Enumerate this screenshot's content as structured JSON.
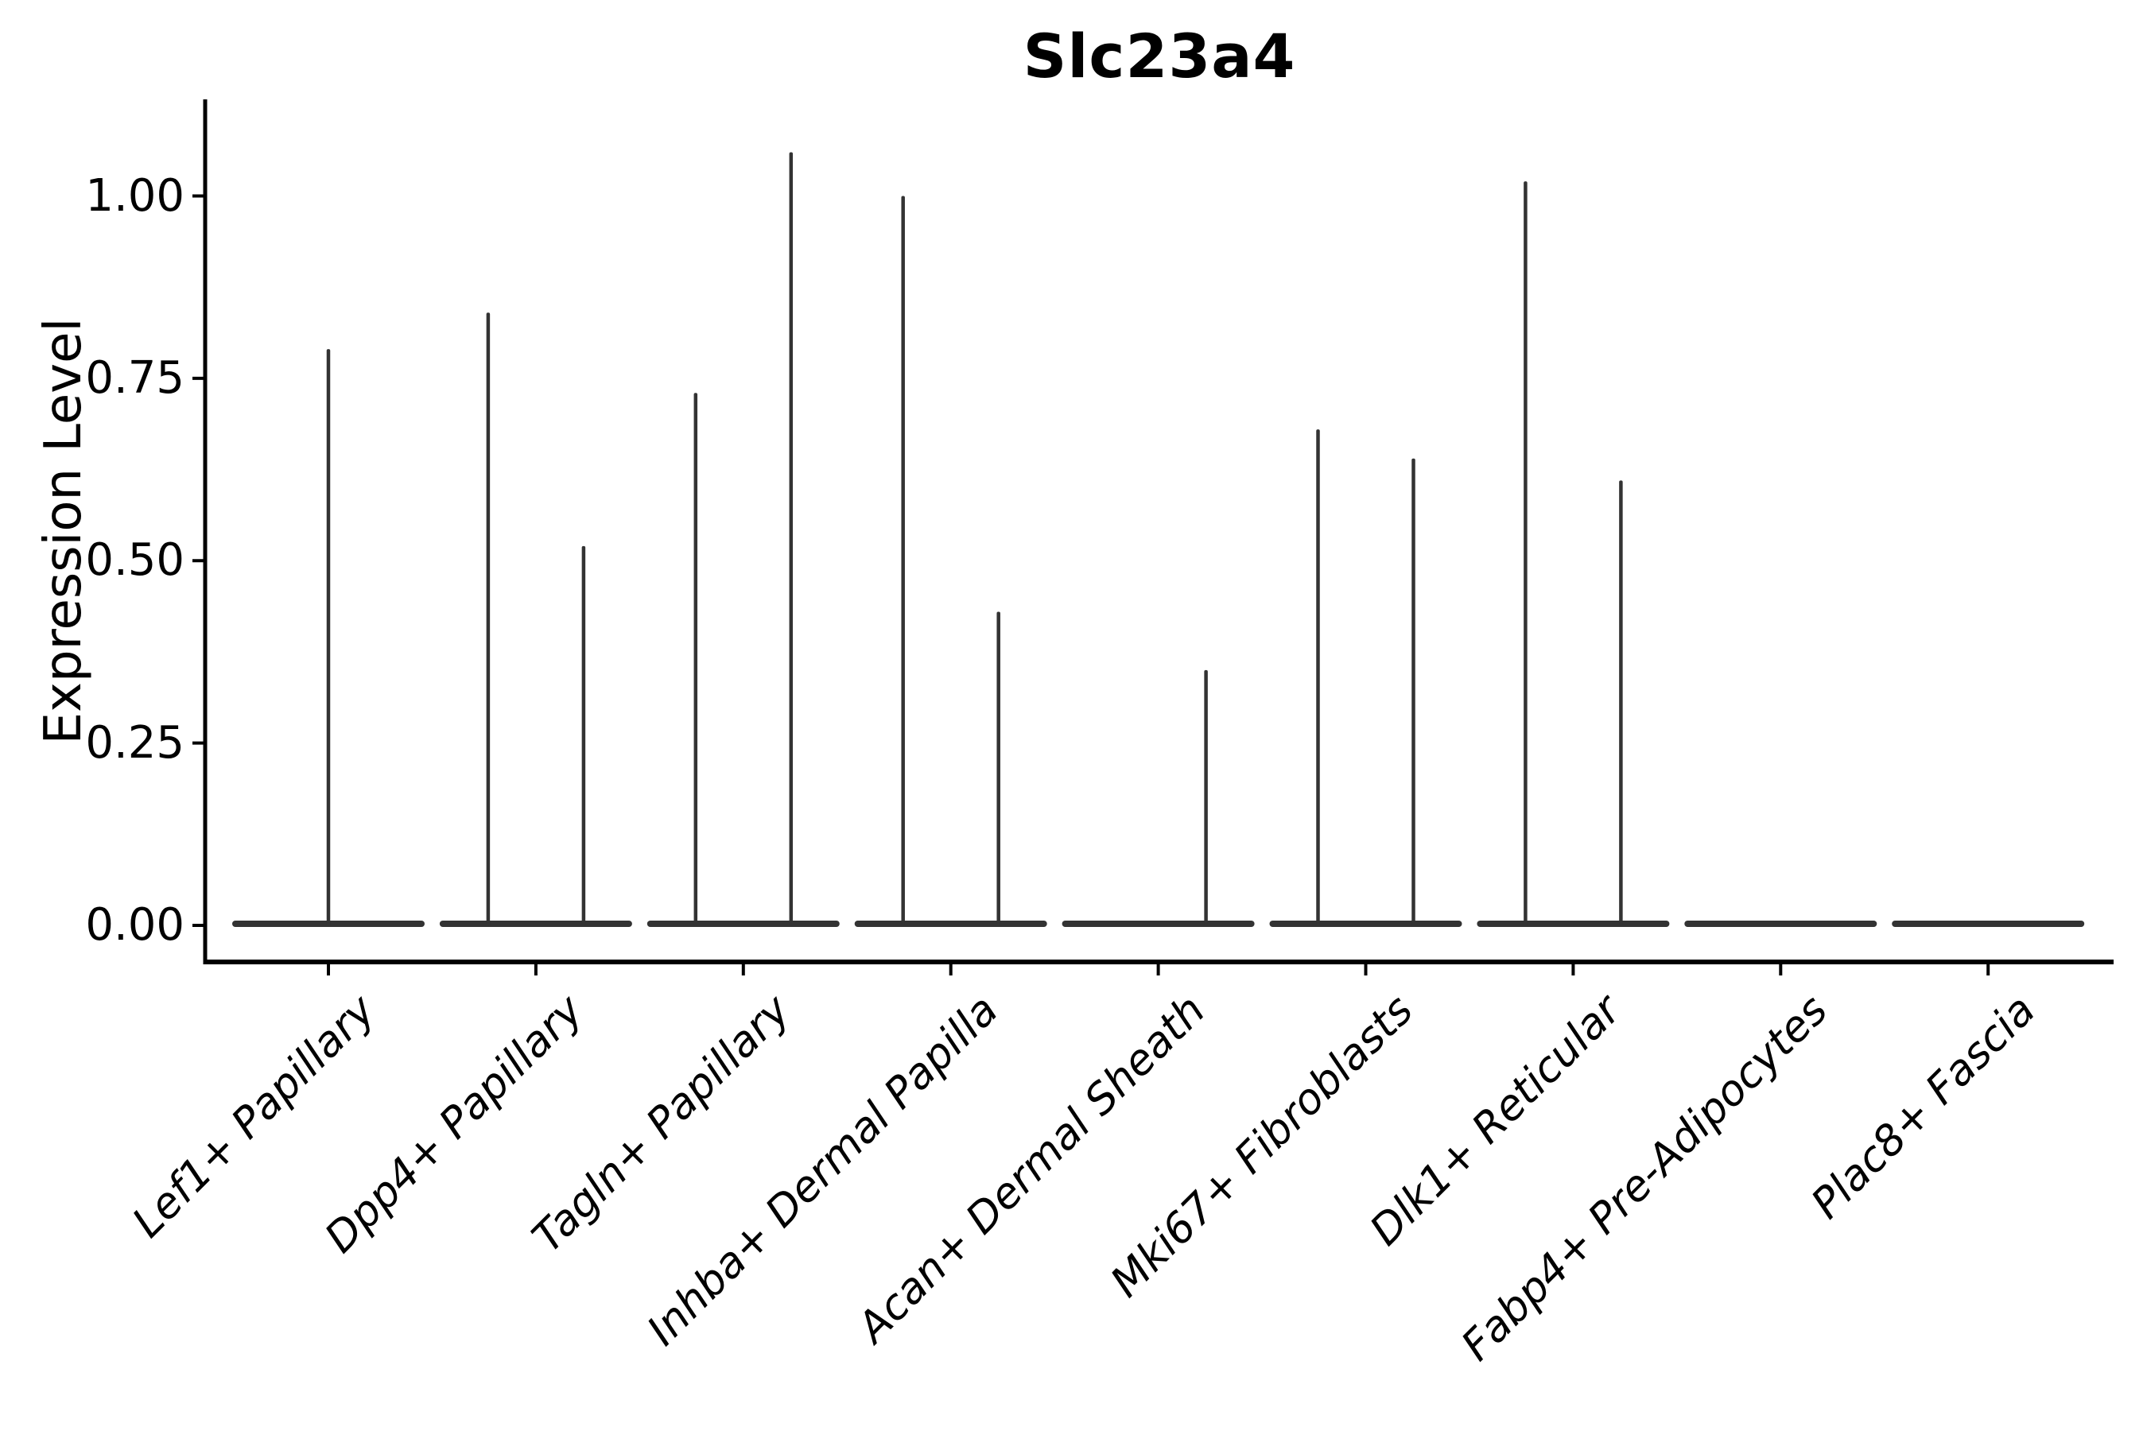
{
  "chart_data": {
    "type": "violin",
    "title": "Slc23a4",
    "xlabel": "",
    "ylabel": "Expression Level",
    "ylim": [
      -0.05,
      1.13
    ],
    "yticks": [
      {
        "value": 0.0,
        "label": "0.00"
      },
      {
        "value": 0.25,
        "label": "0.25"
      },
      {
        "value": 0.5,
        "label": "0.50"
      },
      {
        "value": 0.75,
        "label": "0.75"
      },
      {
        "value": 1.0,
        "label": "1.00"
      }
    ],
    "categories": [
      "Lef1+ Papillary",
      "Dpp4+ Papillary",
      "Tagln+ Papillary",
      "Inhba+ Dermal Papilla",
      "Acan+ Dermal Sheath",
      "Mki67+ Fibroblasts",
      "Dlk1+ Reticular",
      "Fabp4+ Pre-Adipocytes",
      "Plac8+ Fascia"
    ],
    "violins": [
      {
        "category": "Lef1+ Papillary",
        "spikes": [
          {
            "position": "center",
            "value": 0.79
          }
        ]
      },
      {
        "category": "Dpp4+ Papillary",
        "spikes": [
          {
            "position": "left",
            "value": 0.84
          },
          {
            "position": "right",
            "value": 0.52
          }
        ]
      },
      {
        "category": "Tagln+ Papillary",
        "spikes": [
          {
            "position": "left",
            "value": 0.73
          },
          {
            "position": "right",
            "value": 1.06
          }
        ]
      },
      {
        "category": "Inhba+ Dermal Papilla",
        "spikes": [
          {
            "position": "left",
            "value": 1.0
          },
          {
            "position": "right",
            "value": 0.43
          }
        ]
      },
      {
        "category": "Acan+ Dermal Sheath",
        "spikes": [
          {
            "position": "right",
            "value": 0.35
          }
        ]
      },
      {
        "category": "Mki67+ Fibroblasts",
        "spikes": [
          {
            "position": "left",
            "value": 0.68
          },
          {
            "position": "right",
            "value": 0.64
          }
        ]
      },
      {
        "category": "Dlk1+ Reticular",
        "spikes": [
          {
            "position": "left",
            "value": 1.02
          },
          {
            "position": "right",
            "value": 0.61
          }
        ]
      },
      {
        "category": "Fabp4+ Pre-Adipocytes",
        "spikes": []
      },
      {
        "category": "Plac8+ Fascia",
        "spikes": []
      }
    ],
    "violin_color": "#333333",
    "axis_color": "#000000",
    "background": "#ffffff",
    "grid": false,
    "legend": "none"
  }
}
